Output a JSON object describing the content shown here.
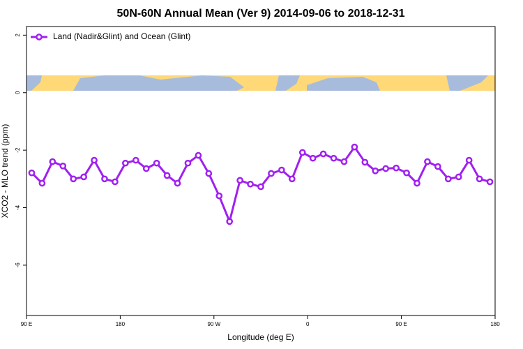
{
  "chart_data": {
    "type": "line",
    "title": "50N-60N Annual Mean (Ver 9)   2014-09-06 to 2018-12-31",
    "x_label": "Longitude (deg E)",
    "y_label": "XCO2 - MLO trend (ppm)",
    "x": [
      95,
      105,
      115,
      125,
      135,
      145,
      155,
      165,
      175,
      185,
      195,
      205,
      215,
      225,
      235,
      245,
      255,
      265,
      275,
      285,
      295,
      305,
      315,
      325,
      335,
      345,
      355,
      365,
      375,
      385,
      395,
      405,
      415,
      425,
      435,
      445,
      455,
      465,
      475,
      485,
      495,
      505,
      515,
      525,
      535
    ],
    "series": [
      {
        "name": "Land (Nadir&Glint) and Ocean (Glint)",
        "color": "#a020f0",
        "values": [
          -2.79,
          -3.15,
          -2.4,
          -2.55,
          -3.0,
          -2.93,
          -2.35,
          -3.0,
          -3.1,
          -2.45,
          -2.35,
          -2.64,
          -2.45,
          -2.88,
          -3.15,
          -2.45,
          -2.18,
          -2.81,
          -3.59,
          -4.48,
          -3.05,
          -3.18,
          -3.27,
          -2.81,
          -2.69,
          -3.0,
          -2.08,
          -2.28,
          -2.13,
          -2.28,
          -2.4,
          -1.89,
          -2.42,
          -2.72,
          -2.64,
          -2.62,
          -2.79,
          -3.15,
          -2.4,
          -2.57,
          -3.0,
          -2.93,
          -2.35,
          -3.0,
          -3.1
        ]
      }
    ],
    "xlim": [
      90,
      540
    ],
    "xticks": [
      {
        "value": 90,
        "label": "90 E"
      },
      {
        "value": 180,
        "label": "180"
      },
      {
        "value": 270,
        "label": "90 W"
      },
      {
        "value": 360,
        "label": "0"
      },
      {
        "value": 450,
        "label": "90 E"
      },
      {
        "value": 540,
        "label": "180"
      }
    ],
    "ylim": [
      -7.75,
      2.3
    ],
    "yticks": [
      -6,
      -4,
      -2,
      0,
      2
    ],
    "legend": "top-left"
  }
}
